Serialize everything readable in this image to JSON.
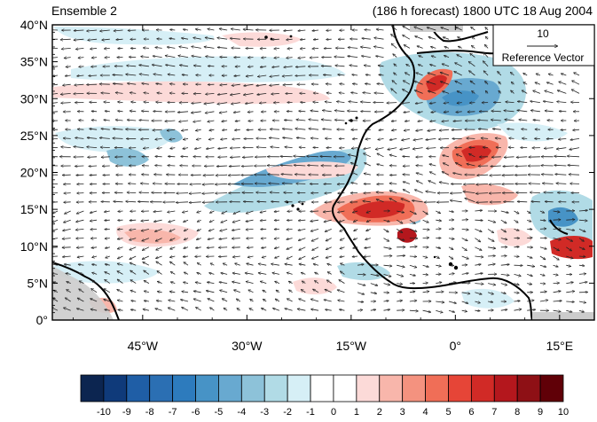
{
  "header": {
    "left_title": "Ensemble 2",
    "right_title": "(186 h forecast) 1800 UTC 18 Aug 2004"
  },
  "map": {
    "lon_range": [
      -58,
      20
    ],
    "lat_range": [
      0,
      40
    ],
    "lat_ticks": [
      {
        "value": 0,
        "label": "0°"
      },
      {
        "value": 5,
        "label": "5°N"
      },
      {
        "value": 10,
        "label": "10°N"
      },
      {
        "value": 15,
        "label": "15°N"
      },
      {
        "value": 20,
        "label": "20°N"
      },
      {
        "value": 25,
        "label": "25°N"
      },
      {
        "value": 30,
        "label": "30°N"
      },
      {
        "value": 35,
        "label": "35°N"
      },
      {
        "value": 40,
        "label": "40°N"
      }
    ],
    "lon_ticks": [
      {
        "value": -45,
        "label": "45°W"
      },
      {
        "value": -30,
        "label": "30°W"
      },
      {
        "value": -15,
        "label": "15°W"
      },
      {
        "value": 0,
        "label": "0°"
      },
      {
        "value": 15,
        "label": "15°E"
      }
    ]
  },
  "reference_vector": {
    "value": "10",
    "label": "Reference Vector"
  },
  "colorbar": {
    "labels": [
      "-10",
      "-9",
      "-8",
      "-7",
      "-6",
      "-5",
      "-4",
      "-3",
      "-2",
      "-1",
      "0",
      "1",
      "2",
      "3",
      "4",
      "5",
      "6",
      "7",
      "8",
      "9",
      "10"
    ],
    "colors": [
      "#0c2550",
      "#0f3a7a",
      "#1f5ea6",
      "#2b6fb3",
      "#2d7bbd",
      "#4793c6",
      "#68a9d0",
      "#8dc2d9",
      "#b1dbe6",
      "#d6eff6",
      "#ffffff",
      "#ffffff",
      "#fcdad8",
      "#f8b6ab",
      "#f4927f",
      "#f06e57",
      "#e64537",
      "#d12a26",
      "#b4171d",
      "#8e1015",
      "#600007"
    ]
  }
}
